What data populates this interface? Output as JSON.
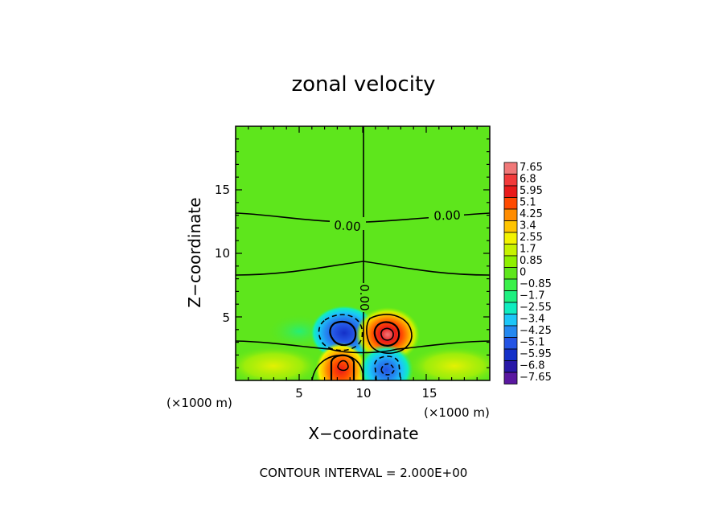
{
  "chart_data": {
    "type": "heatmap",
    "title": "zonal velocity",
    "xlabel": "X−coordinate",
    "ylabel": "Z−coordinate",
    "x_unit_label": "(×1000 m)",
    "x_unit_label_right": "(×1000 m)",
    "xlim": [
      0,
      20
    ],
    "ylim": [
      0,
      20
    ],
    "x_ticks": [
      "5",
      "10",
      "15"
    ],
    "y_ticks": [
      "5",
      "10",
      "15"
    ],
    "footer": "CONTOUR INTERVAL = 2.000E+00",
    "contour_labels": [
      "0.00",
      "0.00",
      "0.00"
    ],
    "colorbar": {
      "levels": [
        "7.65",
        "6.8",
        "5.95",
        "5.1",
        "4.25",
        "3.4",
        "2.55",
        "1.7",
        "0.85",
        "0",
        "−0.85",
        "−1.7",
        "−2.55",
        "−3.4",
        "−4.25",
        "−5.1",
        "−5.95",
        "−6.8",
        "−7.65"
      ],
      "colors": [
        "#f07878",
        "#f23a3a",
        "#e81a1a",
        "#ff4a00",
        "#ff8c00",
        "#ffc400",
        "#f2f200",
        "#c6f200",
        "#8ef000",
        "#5ee61c",
        "#3af04a",
        "#1ef080",
        "#10ecc0",
        "#1cc6f8",
        "#2488f0",
        "#2454e4",
        "#1430c8",
        "#2818a8",
        "#5a18a0"
      ]
    },
    "features": [
      {
        "kind": "negative-core",
        "x": 8.4,
        "z": 3.6,
        "peak": -5.1
      },
      {
        "kind": "positive-core",
        "x": 11.8,
        "z": 3.6,
        "peak": 6.8
      },
      {
        "kind": "positive-core",
        "x": 8.4,
        "z": 1.3,
        "peak": 5.1
      },
      {
        "kind": "negative-core",
        "x": 11.8,
        "z": 1.3,
        "peak": -5.1
      }
    ]
  }
}
